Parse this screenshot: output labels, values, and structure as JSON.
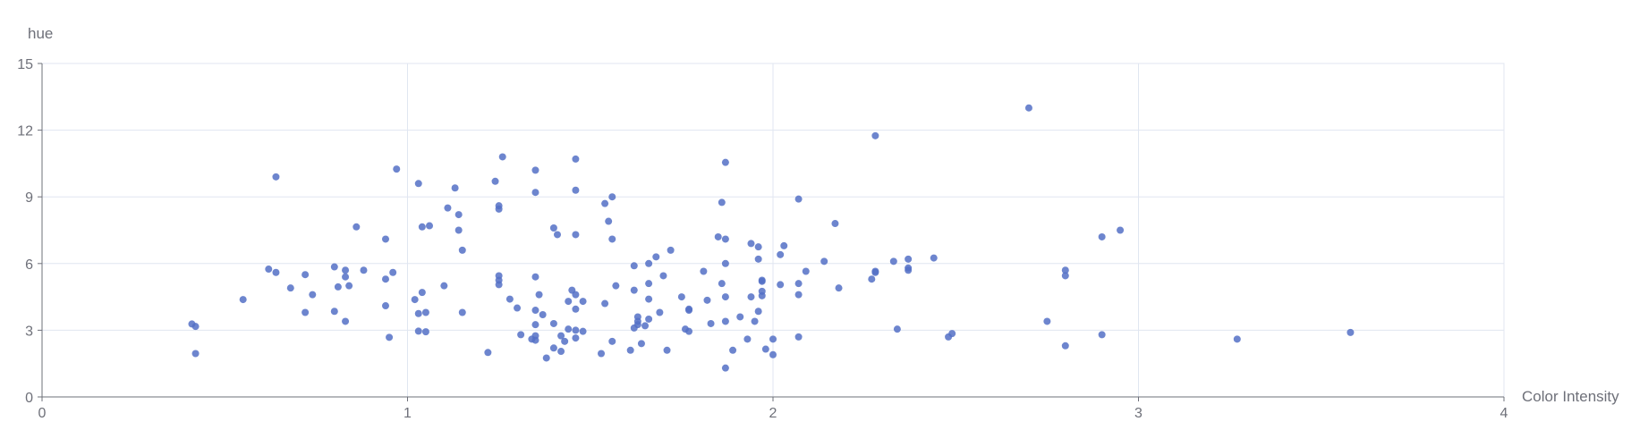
{
  "chart_data": {
    "type": "scatter",
    "title": "",
    "xlabel": "Color Intensity",
    "ylabel": "hue",
    "xlim": [
      0,
      4
    ],
    "ylim": [
      0,
      15
    ],
    "x_ticks": [
      "0",
      "1",
      "2",
      "3",
      "4"
    ],
    "y_ticks": [
      "0",
      "3",
      "6",
      "9",
      "12",
      "15"
    ],
    "grid": true,
    "color": "#5470c6",
    "series": [
      {
        "points": [
          [
            0.41,
            3.28
          ],
          [
            0.42,
            3.17
          ],
          [
            0.42,
            1.95
          ],
          [
            0.55,
            4.38
          ],
          [
            0.62,
            5.75
          ],
          [
            0.64,
            5.6
          ],
          [
            0.64,
            9.9
          ],
          [
            0.68,
            4.9
          ],
          [
            0.72,
            5.5
          ],
          [
            0.72,
            3.8
          ],
          [
            0.74,
            4.6
          ],
          [
            0.8,
            5.85
          ],
          [
            0.8,
            3.85
          ],
          [
            0.81,
            4.95
          ],
          [
            0.83,
            5.7
          ],
          [
            0.83,
            5.4
          ],
          [
            0.83,
            3.4
          ],
          [
            0.84,
            5.0
          ],
          [
            0.86,
            7.65
          ],
          [
            0.88,
            5.7
          ],
          [
            0.94,
            7.1
          ],
          [
            0.94,
            5.3
          ],
          [
            0.94,
            4.1
          ],
          [
            0.95,
            2.68
          ],
          [
            0.96,
            5.6
          ],
          [
            0.97,
            10.25
          ],
          [
            1.02,
            4.38
          ],
          [
            1.03,
            2.96
          ],
          [
            1.03,
            9.6
          ],
          [
            1.03,
            3.75
          ],
          [
            1.04,
            7.65
          ],
          [
            1.04,
            4.7
          ],
          [
            1.05,
            2.93
          ],
          [
            1.05,
            3.8
          ],
          [
            1.06,
            7.7
          ],
          [
            1.1,
            5.0
          ],
          [
            1.11,
            8.5
          ],
          [
            1.13,
            9.4
          ],
          [
            1.14,
            8.2
          ],
          [
            1.14,
            7.5
          ],
          [
            1.15,
            6.6
          ],
          [
            1.15,
            3.8
          ],
          [
            1.22,
            2.0
          ],
          [
            1.24,
            9.7
          ],
          [
            1.25,
            8.6
          ],
          [
            1.25,
            8.45
          ],
          [
            1.25,
            5.45
          ],
          [
            1.25,
            5.25
          ],
          [
            1.25,
            5.05
          ],
          [
            1.26,
            10.8
          ],
          [
            1.28,
            4.4
          ],
          [
            1.3,
            4.0
          ],
          [
            1.31,
            2.8
          ],
          [
            1.34,
            2.6
          ],
          [
            1.35,
            10.2
          ],
          [
            1.35,
            9.2
          ],
          [
            1.35,
            5.4
          ],
          [
            1.35,
            3.9
          ],
          [
            1.35,
            3.25
          ],
          [
            1.35,
            2.75
          ],
          [
            1.35,
            2.55
          ],
          [
            1.36,
            4.6
          ],
          [
            1.37,
            3.7
          ],
          [
            1.38,
            1.75
          ],
          [
            1.4,
            7.6
          ],
          [
            1.4,
            3.3
          ],
          [
            1.4,
            2.2
          ],
          [
            1.41,
            7.3
          ],
          [
            1.42,
            2.05
          ],
          [
            1.42,
            2.75
          ],
          [
            1.43,
            2.5
          ],
          [
            1.44,
            4.3
          ],
          [
            1.44,
            3.05
          ],
          [
            1.45,
            4.8
          ],
          [
            1.46,
            10.7
          ],
          [
            1.46,
            9.3
          ],
          [
            1.46,
            7.3
          ],
          [
            1.46,
            4.6
          ],
          [
            1.46,
            3.95
          ],
          [
            1.46,
            3.0
          ],
          [
            1.46,
            2.65
          ],
          [
            1.48,
            4.3
          ],
          [
            1.48,
            2.95
          ],
          [
            1.53,
            1.95
          ],
          [
            1.54,
            8.7
          ],
          [
            1.54,
            4.2
          ],
          [
            1.55,
            7.9
          ],
          [
            1.56,
            9.0
          ],
          [
            1.56,
            7.1
          ],
          [
            1.56,
            2.5
          ],
          [
            1.57,
            5.0
          ],
          [
            1.61,
            2.1
          ],
          [
            1.62,
            5.9
          ],
          [
            1.62,
            4.8
          ],
          [
            1.62,
            3.1
          ],
          [
            1.63,
            3.6
          ],
          [
            1.63,
            3.4
          ],
          [
            1.63,
            3.25
          ],
          [
            1.64,
            2.4
          ],
          [
            1.65,
            3.2
          ],
          [
            1.66,
            6.0
          ],
          [
            1.66,
            5.1
          ],
          [
            1.66,
            4.4
          ],
          [
            1.66,
            3.5
          ],
          [
            1.68,
            6.3
          ],
          [
            1.69,
            3.8
          ],
          [
            1.7,
            5.45
          ],
          [
            1.71,
            2.1
          ],
          [
            1.72,
            6.6
          ],
          [
            1.75,
            4.5
          ],
          [
            1.76,
            3.05
          ],
          [
            1.77,
            3.95
          ],
          [
            1.77,
            2.95
          ],
          [
            1.77,
            3.9
          ],
          [
            1.81,
            5.65
          ],
          [
            1.82,
            4.35
          ],
          [
            1.83,
            3.3
          ],
          [
            1.85,
            7.2
          ],
          [
            1.86,
            8.75
          ],
          [
            1.86,
            5.1
          ],
          [
            1.87,
            10.55
          ],
          [
            1.87,
            7.1
          ],
          [
            1.87,
            6.0
          ],
          [
            1.87,
            4.5
          ],
          [
            1.87,
            3.4
          ],
          [
            1.87,
            1.3
          ],
          [
            1.89,
            2.1
          ],
          [
            1.91,
            3.6
          ],
          [
            1.93,
            2.6
          ],
          [
            1.94,
            6.9
          ],
          [
            1.94,
            4.5
          ],
          [
            1.95,
            3.4
          ],
          [
            1.96,
            6.75
          ],
          [
            1.96,
            6.2
          ],
          [
            1.96,
            3.85
          ],
          [
            1.97,
            5.25
          ],
          [
            1.97,
            5.2
          ],
          [
            1.97,
            4.75
          ],
          [
            1.97,
            4.55
          ],
          [
            1.98,
            2.15
          ],
          [
            2.0,
            2.6
          ],
          [
            2.0,
            1.9
          ],
          [
            2.02,
            6.4
          ],
          [
            2.02,
            5.05
          ],
          [
            2.03,
            6.8
          ],
          [
            2.07,
            8.9
          ],
          [
            2.07,
            5.1
          ],
          [
            2.07,
            4.6
          ],
          [
            2.07,
            2.7
          ],
          [
            2.09,
            5.65
          ],
          [
            2.17,
            7.8
          ],
          [
            2.18,
            4.9
          ],
          [
            2.14,
            6.1
          ],
          [
            2.27,
            5.3
          ],
          [
            2.28,
            11.75
          ],
          [
            2.28,
            5.65
          ],
          [
            2.28,
            5.6
          ],
          [
            2.33,
            6.1
          ],
          [
            2.34,
            3.05
          ],
          [
            2.37,
            6.2
          ],
          [
            2.37,
            5.8
          ],
          [
            2.37,
            5.7
          ],
          [
            2.44,
            6.25
          ],
          [
            2.48,
            2.7
          ],
          [
            2.49,
            2.85
          ],
          [
            2.7,
            13.0
          ],
          [
            2.75,
            3.4
          ],
          [
            2.8,
            5.7
          ],
          [
            2.8,
            5.45
          ],
          [
            2.8,
            2.3
          ],
          [
            2.9,
            7.2
          ],
          [
            2.9,
            2.8
          ],
          [
            2.95,
            7.5
          ],
          [
            3.27,
            2.6
          ],
          [
            3.58,
            2.9
          ]
        ]
      }
    ]
  }
}
